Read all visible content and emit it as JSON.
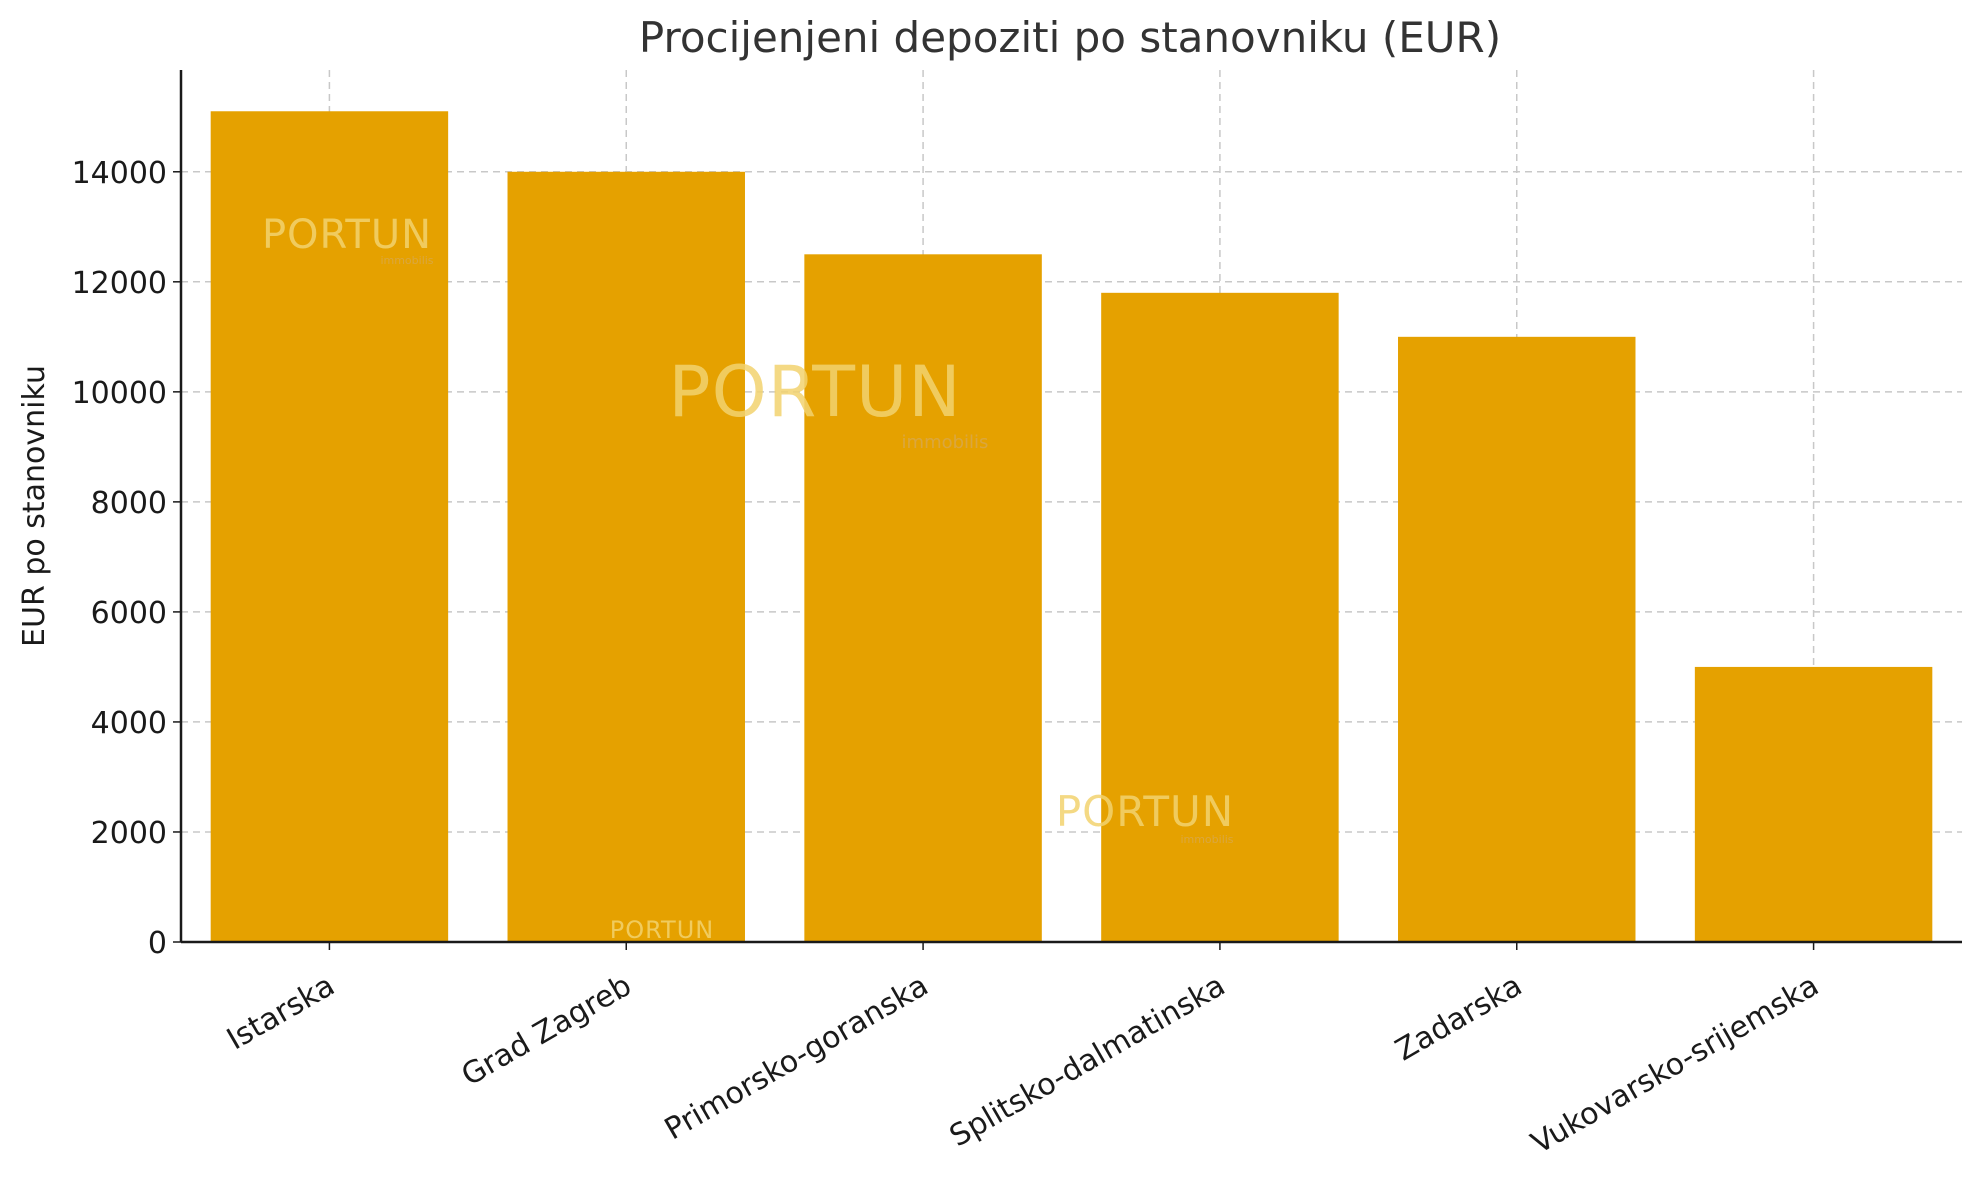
{
  "chart_data": {
    "type": "bar",
    "title": "Procijenjeni depoziti po stanovniku (EUR)",
    "xlabel": "",
    "ylabel": "EUR po stanovniku",
    "categories": [
      "Istarska",
      "Grad Zagreb",
      "Primorsko-goranska",
      "Splitsko-dalmatinska",
      "Zadarska",
      "Vukovarsko-srijemska"
    ],
    "values": [
      15100,
      14000,
      12500,
      11800,
      11000,
      5000
    ],
    "ylim": [
      0,
      15850
    ],
    "yticks": [
      0,
      2000,
      4000,
      6000,
      8000,
      10000,
      12000,
      14000
    ],
    "grid": true,
    "bar_color": "#e5a100"
  },
  "watermark": {
    "brand": "PORTUN",
    "tagline": "immobilis"
  }
}
